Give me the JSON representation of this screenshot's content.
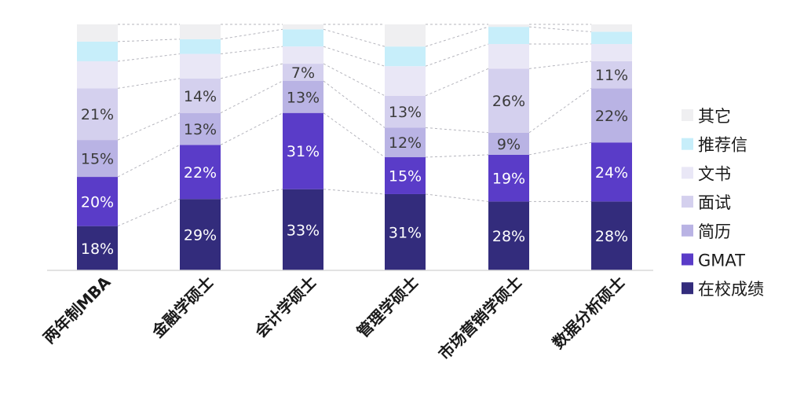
{
  "chart_data": {
    "type": "bar",
    "stacked": true,
    "normalized": true,
    "title": "",
    "xlabel": "",
    "ylabel": "",
    "ylim": [
      0,
      100
    ],
    "grid": false,
    "legend_position": "right",
    "categories": [
      "两年制MBA",
      "金融学硕士",
      "会计学硕士",
      "管理学硕士",
      "市场营销学硕士",
      "数据分析硕士"
    ],
    "series": [
      {
        "name": "在校成绩",
        "color": "#332c7c",
        "values": [
          18,
          29,
          33,
          31,
          28,
          28
        ],
        "labels": [
          "18%",
          "29%",
          "33%",
          "31%",
          "28%",
          "28%"
        ]
      },
      {
        "name": "GMAT",
        "color": "#5a3cc8",
        "values": [
          20,
          22,
          31,
          15,
          19,
          24
        ],
        "labels": [
          "20%",
          "22%",
          "31%",
          "15%",
          "19%",
          "24%"
        ]
      },
      {
        "name": "简历",
        "color": "#b9b3e4",
        "values": [
          15,
          13,
          13,
          12,
          9,
          22
        ],
        "labels": [
          "15%",
          "13%",
          "13%",
          "12%",
          "9%",
          "22%"
        ]
      },
      {
        "name": "面试",
        "color": "#d4d0ee",
        "values": [
          21,
          14,
          7,
          13,
          26,
          11
        ],
        "labels": [
          "21%",
          "14%",
          "7%",
          "13%",
          "26%",
          "11%"
        ]
      },
      {
        "name": "文书",
        "color": "#e9e7f6",
        "values": [
          11,
          10,
          7,
          12,
          10,
          7
        ],
        "labels": [
          "",
          "",
          "",
          "",
          "",
          ""
        ]
      },
      {
        "name": "推荐信",
        "color": "#c7eefa",
        "values": [
          8,
          6,
          7,
          8,
          7,
          5
        ],
        "labels": [
          "",
          "",
          "",
          "",
          "",
          ""
        ]
      },
      {
        "name": "其它",
        "color": "#efeff1",
        "values": [
          7,
          6,
          2,
          9,
          1,
          3
        ],
        "labels": [
          "",
          "",
          "",
          "",
          "",
          ""
        ]
      }
    ]
  }
}
